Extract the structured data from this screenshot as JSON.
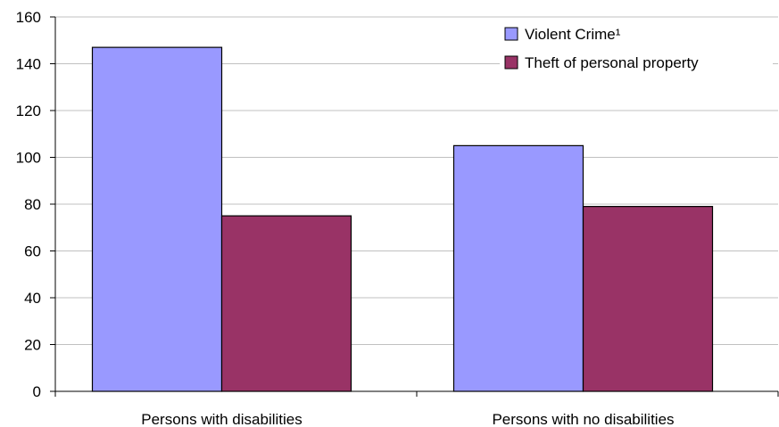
{
  "chart_data": {
    "type": "bar",
    "categories": [
      "Persons with disabilities",
      "Persons with no disabilities"
    ],
    "series": [
      {
        "name": "Violent Crime¹",
        "values": [
          147,
          105
        ],
        "color": "#9999ff"
      },
      {
        "name": "Theft of personal property",
        "values": [
          75,
          79
        ],
        "color": "#993366"
      }
    ],
    "ylim": [
      0,
      160
    ],
    "yticks": [
      0,
      20,
      40,
      60,
      80,
      100,
      120,
      140,
      160
    ],
    "grid": true,
    "legend_position": "top-right",
    "title": "",
    "xlabel": "",
    "ylabel": ""
  }
}
